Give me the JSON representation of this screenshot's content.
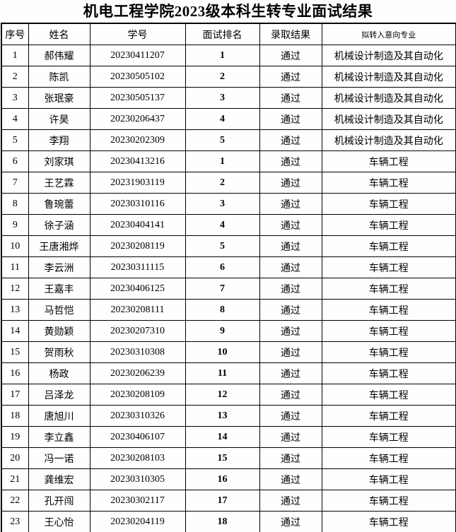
{
  "title": "机电工程学院2023级本科生转专业面试结果",
  "table": {
    "headers": {
      "no": "序号",
      "name": "姓名",
      "student_id": "学号",
      "rank": "面试排名",
      "result": "录取结果",
      "major": "拟转入意向专业"
    },
    "rows": [
      {
        "no": "1",
        "name": "郝伟耀",
        "student_id": "20230411207",
        "rank": "1",
        "result": "通过",
        "major": "机械设计制造及其自动化"
      },
      {
        "no": "2",
        "name": "陈凯",
        "student_id": "20230505102",
        "rank": "2",
        "result": "通过",
        "major": "机械设计制造及其自动化"
      },
      {
        "no": "3",
        "name": "张珉豪",
        "student_id": "20230505137",
        "rank": "3",
        "result": "通过",
        "major": "机械设计制造及其自动化"
      },
      {
        "no": "4",
        "name": "许昊",
        "student_id": "20230206437",
        "rank": "4",
        "result": "通过",
        "major": "机械设计制造及其自动化"
      },
      {
        "no": "5",
        "name": "李翔",
        "student_id": "20230202309",
        "rank": "5",
        "result": "通过",
        "major": "机械设计制造及其自动化"
      },
      {
        "no": "6",
        "name": "刘家琪",
        "student_id": "20230413216",
        "rank": "1",
        "result": "通过",
        "major": "车辆工程"
      },
      {
        "no": "7",
        "name": "王艺霖",
        "student_id": "20231903119",
        "rank": "2",
        "result": "通过",
        "major": "车辆工程"
      },
      {
        "no": "8",
        "name": "鲁琬蕾",
        "student_id": "20230310116",
        "rank": "3",
        "result": "通过",
        "major": "车辆工程"
      },
      {
        "no": "9",
        "name": "徐子涵",
        "student_id": "20230404141",
        "rank": "4",
        "result": "通过",
        "major": "车辆工程"
      },
      {
        "no": "10",
        "name": "王唐湘烨",
        "student_id": "20230208119",
        "rank": "5",
        "result": "通过",
        "major": "车辆工程"
      },
      {
        "no": "11",
        "name": "李云洲",
        "student_id": "20230311115",
        "rank": "6",
        "result": "通过",
        "major": "车辆工程"
      },
      {
        "no": "12",
        "name": "王嘉丰",
        "student_id": "20230406125",
        "rank": "7",
        "result": "通过",
        "major": "车辆工程"
      },
      {
        "no": "13",
        "name": "马哲恺",
        "student_id": "20230208111",
        "rank": "8",
        "result": "通过",
        "major": "车辆工程"
      },
      {
        "no": "14",
        "name": "黄勋颖",
        "student_id": "20230207310",
        "rank": "9",
        "result": "通过",
        "major": "车辆工程"
      },
      {
        "no": "15",
        "name": "贺雨秋",
        "student_id": "20230310308",
        "rank": "10",
        "result": "通过",
        "major": "车辆工程"
      },
      {
        "no": "16",
        "name": "杨政",
        "student_id": "20230206239",
        "rank": "11",
        "result": "通过",
        "major": "车辆工程"
      },
      {
        "no": "17",
        "name": "吕泽龙",
        "student_id": "20230208109",
        "rank": "12",
        "result": "通过",
        "major": "车辆工程"
      },
      {
        "no": "18",
        "name": "唐旭川",
        "student_id": "20230310326",
        "rank": "13",
        "result": "通过",
        "major": "车辆工程"
      },
      {
        "no": "19",
        "name": "李立鑫",
        "student_id": "20230406107",
        "rank": "14",
        "result": "通过",
        "major": "车辆工程"
      },
      {
        "no": "20",
        "name": "冯一诺",
        "student_id": "20230208103",
        "rank": "15",
        "result": "通过",
        "major": "车辆工程"
      },
      {
        "no": "21",
        "name": "龚维宏",
        "student_id": "20230310305",
        "rank": "16",
        "result": "通过",
        "major": "车辆工程"
      },
      {
        "no": "22",
        "name": "孔开闯",
        "student_id": "20230302117",
        "rank": "17",
        "result": "通过",
        "major": "车辆工程"
      },
      {
        "no": "23",
        "name": "王心怡",
        "student_id": "20230204119",
        "rank": "18",
        "result": "通过",
        "major": "车辆工程"
      }
    ]
  }
}
